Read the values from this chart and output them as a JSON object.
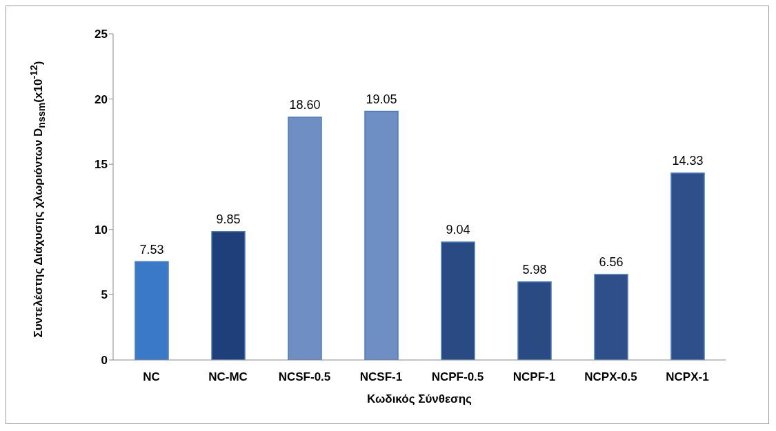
{
  "chart_data": {
    "type": "bar",
    "xlabel": "Κωδικός Σύνθεσης",
    "ylabel": "Συντελέστης Διάχυσης χλωριόντων D$_{nssm}$(x10$^{-12}$)",
    "categories": [
      "NC",
      "NC-MC",
      "NCSF-0.5",
      "NCSF-1",
      "NCPF-0.5",
      "NCPF-1",
      "NCPX-0.5",
      "NCPX-1"
    ],
    "values": [
      7.53,
      9.85,
      18.6,
      19.05,
      9.04,
      5.98,
      6.56,
      14.33
    ],
    "value_labels": [
      "7.53",
      "9.85",
      "18.60",
      "19.05",
      "9.04",
      "5.98",
      "6.56",
      "14.33"
    ],
    "colors": [
      "#3a78c8",
      "#1f3f7a",
      "#6f8fc4",
      "#6f8fc4",
      "#2a4a84",
      "#2a4a84",
      "#2f4f8a",
      "#2f4f8a"
    ],
    "ylim": [
      0,
      25
    ],
    "yticks": [
      0,
      5,
      10,
      15,
      20,
      25
    ],
    "grid": false,
    "legend": false
  }
}
